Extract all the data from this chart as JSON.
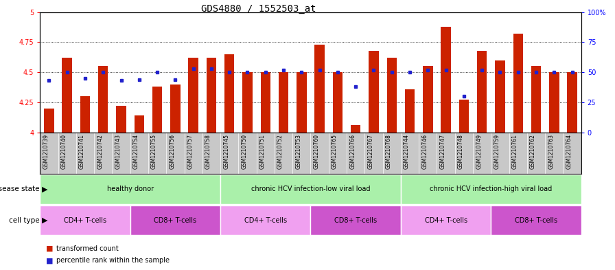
{
  "title": "GDS4880 / 1552503_at",
  "samples": [
    "GSM1210739",
    "GSM1210740",
    "GSM1210741",
    "GSM1210742",
    "GSM1210743",
    "GSM1210754",
    "GSM1210755",
    "GSM1210756",
    "GSM1210757",
    "GSM1210758",
    "GSM1210745",
    "GSM1210750",
    "GSM1210751",
    "GSM1210752",
    "GSM1210753",
    "GSM1210760",
    "GSM1210765",
    "GSM1210766",
    "GSM1210767",
    "GSM1210768",
    "GSM1210744",
    "GSM1210746",
    "GSM1210747",
    "GSM1210748",
    "GSM1210749",
    "GSM1210759",
    "GSM1210761",
    "GSM1210762",
    "GSM1210763",
    "GSM1210764"
  ],
  "bar_values": [
    4.2,
    4.62,
    4.3,
    4.55,
    4.22,
    4.14,
    4.38,
    4.4,
    4.62,
    4.62,
    4.65,
    4.5,
    4.5,
    4.5,
    4.5,
    4.73,
    4.5,
    4.06,
    4.68,
    4.62,
    4.36,
    4.55,
    4.88,
    4.27,
    4.68,
    4.6,
    4.82,
    4.55,
    4.5,
    4.5
  ],
  "percentile_values": [
    43,
    50,
    45,
    50,
    43,
    44,
    50,
    44,
    53,
    53,
    50,
    50,
    50,
    52,
    50,
    52,
    50,
    38,
    52,
    50,
    50,
    52,
    52,
    30,
    52,
    50,
    50,
    50,
    50,
    50
  ],
  "ylim_left": [
    4.0,
    5.0
  ],
  "ylim_right": [
    0,
    100
  ],
  "yticks_left": [
    4.0,
    4.25,
    4.5,
    4.75,
    5.0
  ],
  "yticks_right": [
    0,
    25,
    50,
    75,
    100
  ],
  "bar_color": "#cc2200",
  "dot_color": "#2222cc",
  "tick_bg_color": "#c8c8c8",
  "ds_color": "#aaf0aa",
  "ct_cd4_color": "#f0a0f0",
  "ct_cd8_color": "#cc55cc",
  "ds_groups": [
    {
      "label": "healthy donor",
      "start": 0,
      "end": 10
    },
    {
      "label": "chronic HCV infection-low viral load",
      "start": 10,
      "end": 20
    },
    {
      "label": "chronic HCV infection-high viral load",
      "start": 20,
      "end": 30
    }
  ],
  "ct_groups": [
    {
      "label": "CD4+ T-cells",
      "start": 0,
      "end": 5,
      "type": "cd4"
    },
    {
      "label": "CD8+ T-cells",
      "start": 5,
      "end": 10,
      "type": "cd8"
    },
    {
      "label": "CD4+ T-cells",
      "start": 10,
      "end": 15,
      "type": "cd4"
    },
    {
      "label": "CD8+ T-cells",
      "start": 15,
      "end": 20,
      "type": "cd8"
    },
    {
      "label": "CD4+ T-cells",
      "start": 20,
      "end": 25,
      "type": "cd4"
    },
    {
      "label": "CD8+ T-cells",
      "start": 25,
      "end": 30,
      "type": "cd8"
    }
  ]
}
